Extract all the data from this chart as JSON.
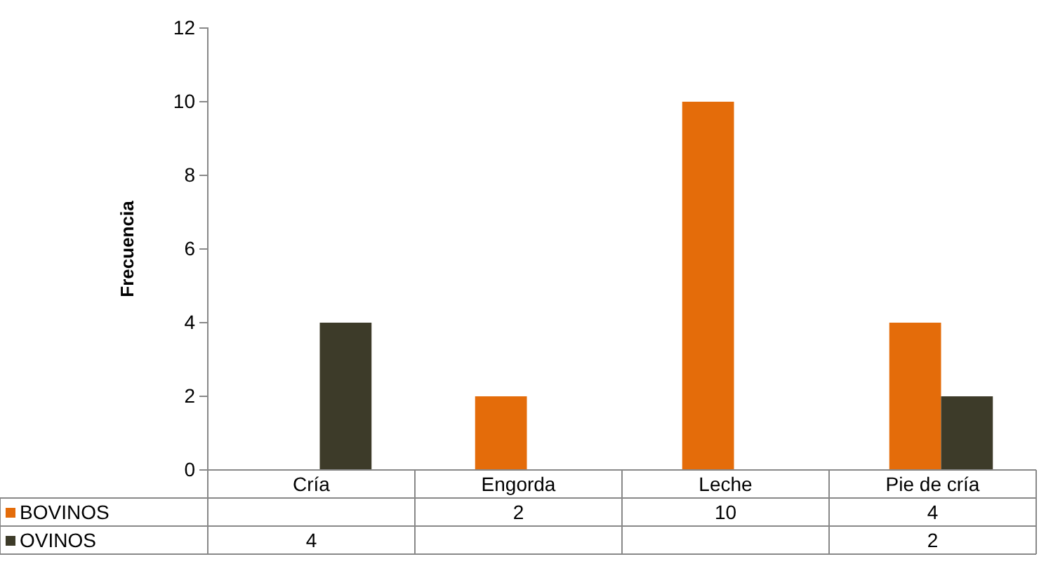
{
  "chart_data": {
    "type": "bar",
    "ylabel": "Frecuencia",
    "categories": [
      "Cría",
      "Engorda",
      "Leche",
      "Pie de cría"
    ],
    "series": [
      {
        "name": "BOVINOS",
        "color": "#e46c0a",
        "values": [
          null,
          2,
          10,
          4
        ]
      },
      {
        "name": "OVINOS",
        "color": "#3d3b29",
        "values": [
          4,
          null,
          null,
          2
        ]
      }
    ],
    "ylim": [
      0,
      12
    ],
    "yticks": [
      0,
      2,
      4,
      6,
      8,
      10,
      12
    ],
    "data_labels": true,
    "legend": "bottom left"
  }
}
